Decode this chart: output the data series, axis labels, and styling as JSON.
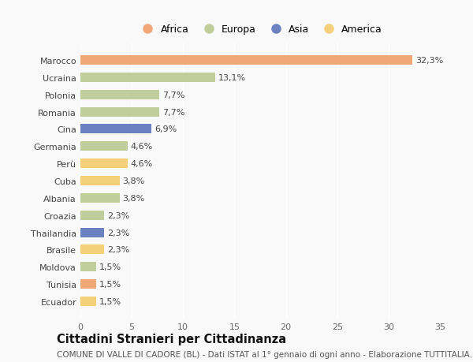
{
  "countries": [
    "Marocco",
    "Ucraina",
    "Polonia",
    "Romania",
    "Cina",
    "Germania",
    "Perù",
    "Cuba",
    "Albania",
    "Croazia",
    "Thailandia",
    "Brasile",
    "Moldova",
    "Tunisia",
    "Ecuador"
  ],
  "values": [
    32.3,
    13.1,
    7.7,
    7.7,
    6.9,
    4.6,
    4.6,
    3.8,
    3.8,
    2.3,
    2.3,
    2.3,
    1.5,
    1.5,
    1.5
  ],
  "labels": [
    "32,3%",
    "13,1%",
    "7,7%",
    "7,7%",
    "6,9%",
    "4,6%",
    "4,6%",
    "3,8%",
    "3,8%",
    "2,3%",
    "2,3%",
    "2,3%",
    "1,5%",
    "1,5%",
    "1,5%"
  ],
  "continents": [
    "Africa",
    "Europa",
    "Europa",
    "Europa",
    "Asia",
    "Europa",
    "America",
    "America",
    "Europa",
    "Europa",
    "Asia",
    "America",
    "Europa",
    "Africa",
    "America"
  ],
  "colors": {
    "Africa": "#F0A878",
    "Europa": "#BFCE9A",
    "Asia": "#6A82C0",
    "America": "#F5D07A"
  },
  "legend_order": [
    "Africa",
    "Europa",
    "Asia",
    "America"
  ],
  "xlim": [
    0,
    35
  ],
  "xticks": [
    0,
    5,
    10,
    15,
    20,
    25,
    30,
    35
  ],
  "title": "Cittadini Stranieri per Cittadinanza",
  "subtitle": "COMUNE DI VALLE DI CADORE (BL) - Dati ISTAT al 1° gennaio di ogni anno - Elaborazione TUTTITALIA.IT",
  "background_color": "#f9f9f9",
  "bar_height": 0.55,
  "label_fontsize": 8,
  "title_fontsize": 10.5,
  "subtitle_fontsize": 7.5,
  "tick_fontsize": 8,
  "legend_fontsize": 9
}
